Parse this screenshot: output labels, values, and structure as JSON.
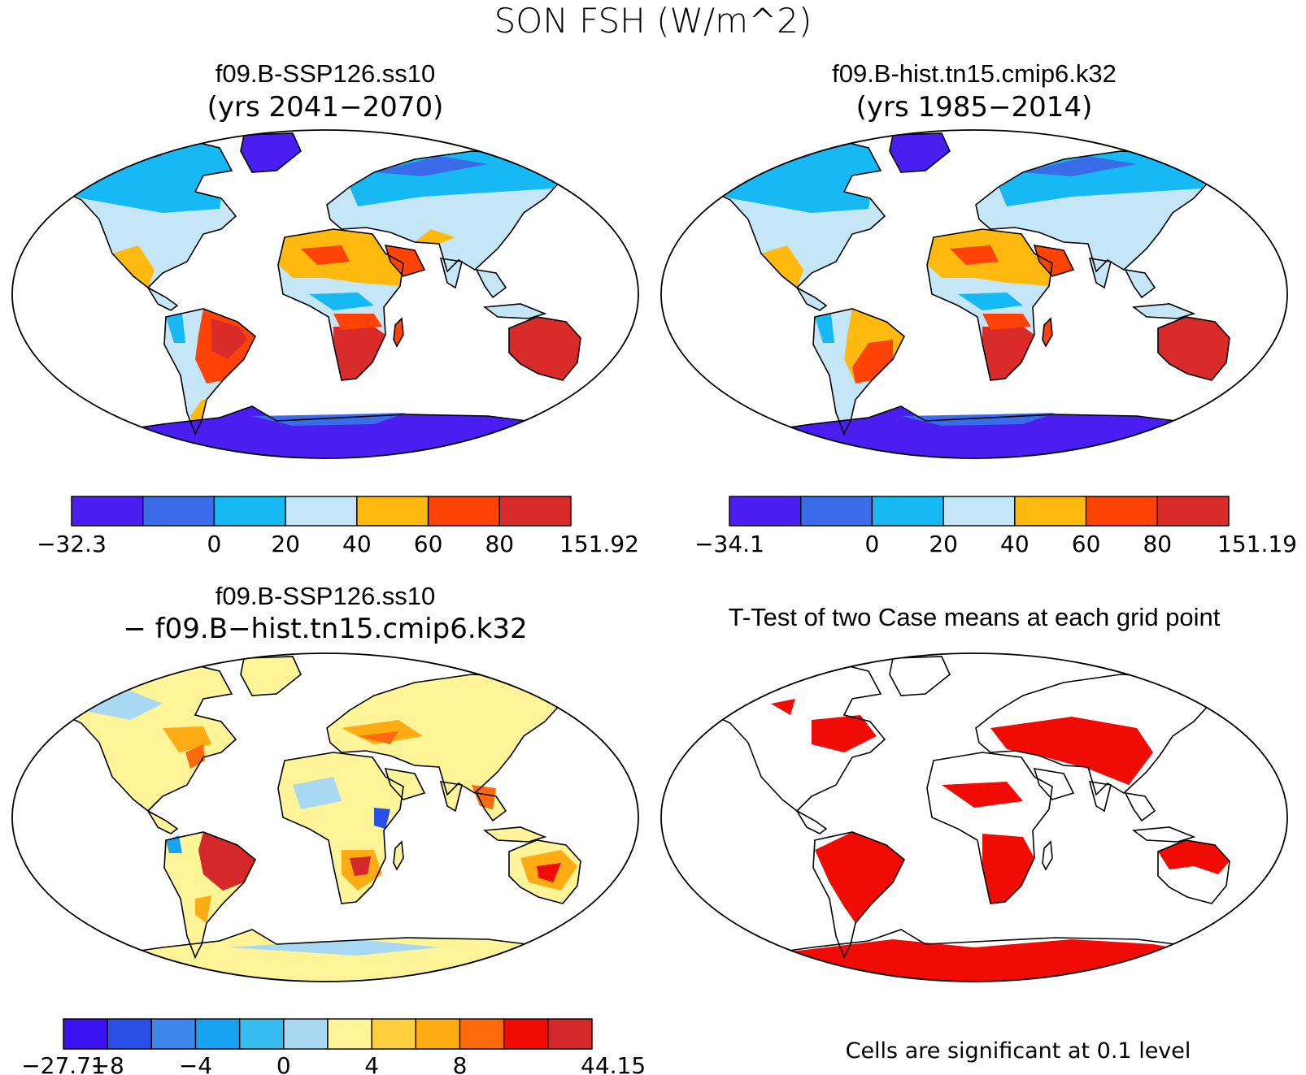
{
  "main_title": "SON FSH (W/m^2)",
  "panels": [
    {
      "title": "f09.B-SSP126.ss10",
      "subtitle": "(yrs 2041−2070)"
    },
    {
      "title": "f09.B-hist.tn15.cmip6.k32",
      "subtitle": "(yrs 1985−2014)"
    },
    {
      "title": "f09.B-SSP126.ss10",
      "subtitle": "− f09.B−hist.tn15.cmip6.k32"
    },
    {
      "title": "T-Test of two Case means at each grid point",
      "subtitle": ""
    }
  ],
  "colorbars": [
    {
      "colors": [
        "#4a1ef0",
        "#3a6be8",
        "#17b9f5",
        "#c5e6f6",
        "#ffb90f",
        "#ff4306",
        "#d92c2a"
      ],
      "labels": [
        "−32.3",
        "",
        "0",
        "20",
        "40",
        "60",
        "80",
        "151.92"
      ]
    },
    {
      "colors": [
        "#4a1ef0",
        "#3a6be8",
        "#17b9f5",
        "#c5e6f6",
        "#ffb90f",
        "#ff4306",
        "#d92c2a"
      ],
      "labels": [
        "−34.1",
        "",
        "0",
        "20",
        "40",
        "60",
        "80",
        "151.19"
      ]
    },
    {
      "colors": [
        "#3c10f2",
        "#2850e6",
        "#3f86ec",
        "#17a2f2",
        "#37bcf0",
        "#a8d8f2",
        "#fff498",
        "#ffcf40",
        "#ffac14",
        "#ff6a0c",
        "#f00c04",
        "#d4282a"
      ],
      "labels": [
        "−27.71",
        "−8",
        "",
        "−4",
        "",
        "0",
        "",
        "4",
        "",
        "8",
        "",
        "44.15"
      ]
    }
  ],
  "significance_note": "Cells are significant at 0.1 level",
  "map_colors": {
    "panel1": {
      "arctic": "#17b9f5",
      "temperate": "#c5e6f6",
      "dry": "#ffb90f",
      "hot": "#d92c2a",
      "ice": "#4a1ef0"
    },
    "panel2": {
      "arctic": "#17b9f5",
      "temperate": "#c5e6f6",
      "dry": "#ffb90f",
      "hot": "#d92c2a",
      "ice": "#4a1ef0"
    },
    "panel3": {
      "base": "#fff498",
      "cool": "#a8d8f2",
      "warm": "#ffac14",
      "hot": "#d4282a"
    },
    "panel4": {
      "significant": "#f00c04"
    }
  }
}
